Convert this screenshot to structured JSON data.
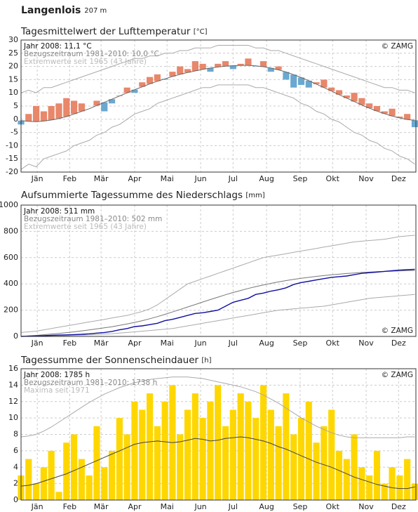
{
  "header": {
    "station": "Langenlois",
    "elevation": "207 m"
  },
  "chart_data": [
    {
      "type": "anomaly",
      "title": "Tagesmittelwert der Lufttemperatur",
      "unit": "[°C]",
      "copyright": "© ZAMG",
      "grid": true,
      "x": [
        1,
        8,
        15,
        22,
        29,
        36,
        43,
        50,
        57,
        64,
        71,
        78,
        85,
        92,
        99,
        106,
        113,
        120,
        127,
        134,
        141,
        148,
        155,
        162,
        169,
        176,
        183,
        190,
        197,
        204,
        211,
        218,
        225,
        232,
        239,
        246,
        253,
        260,
        267,
        274,
        281,
        288,
        295,
        302,
        309,
        316,
        323,
        330,
        337,
        344,
        351,
        358,
        365
      ],
      "xlim": [
        1,
        366
      ],
      "xticks": [
        {
          "value": 16,
          "label": "Jän"
        },
        {
          "value": 46,
          "label": "Feb"
        },
        {
          "value": 75,
          "label": "Mär"
        },
        {
          "value": 106,
          "label": "Apr"
        },
        {
          "value": 136,
          "label": "Mai"
        },
        {
          "value": 167,
          "label": "Jun"
        },
        {
          "value": 197,
          "label": "Jul"
        },
        {
          "value": 228,
          "label": "Aug"
        },
        {
          "value": 259,
          "label": "Sep"
        },
        {
          "value": 289,
          "label": "Okt"
        },
        {
          "value": 320,
          "label": "Nov"
        },
        {
          "value": 350,
          "label": "Dez"
        }
      ],
      "ylim": [
        -20,
        30
      ],
      "yticks": [
        -20,
        -15,
        -10,
        -5,
        0,
        5,
        10,
        15,
        20,
        25,
        30
      ],
      "series": [
        {
          "name": "Jahr 2008: 11,1 °C",
          "color": "#e8876a",
          "color_below": "#6aa8d0",
          "values": [
            -2,
            2,
            5,
            3,
            5,
            6,
            8,
            7,
            6,
            4,
            7,
            3,
            6,
            9,
            12,
            10,
            14,
            16,
            17,
            15,
            18,
            20,
            19,
            22,
            21,
            18,
            21,
            22,
            19,
            21,
            23,
            20,
            22,
            18,
            20,
            15,
            12,
            13,
            12,
            14,
            15,
            12,
            11,
            9,
            10,
            8,
            6,
            5,
            3,
            4,
            1,
            2,
            -3
          ]
        },
        {
          "name": "Bezugszeitraum 1981–2010: 10,0 °C",
          "color": "#666666",
          "values": [
            -0.5,
            -0.8,
            -0.9,
            -0.7,
            -0.3,
            0.3,
            1.0,
            2.0,
            3.0,
            4.0,
            5.2,
            6.4,
            7.6,
            8.8,
            10.0,
            11.2,
            12.3,
            13.4,
            14.4,
            15.3,
            16.2,
            17.0,
            17.7,
            18.3,
            18.9,
            19.4,
            19.8,
            20.1,
            20.3,
            20.4,
            20.4,
            20.2,
            19.9,
            19.4,
            18.7,
            17.9,
            16.9,
            15.8,
            14.6,
            13.3,
            12.0,
            10.7,
            9.3,
            8.0,
            6.7,
            5.4,
            4.2,
            3.1,
            2.1,
            1.2,
            0.5,
            -0.1,
            -0.4
          ]
        },
        {
          "name": "Extremwerte seit 1965 (43 Jahre)",
          "color": "#aaaaaa",
          "values": [
            10,
            11,
            10,
            12,
            12,
            13,
            14,
            15,
            16,
            17,
            18,
            19,
            20,
            21,
            22,
            23,
            23,
            24,
            24,
            25,
            25,
            26,
            26,
            27,
            27,
            27,
            28,
            28,
            28,
            28,
            28,
            27,
            27,
            26,
            26,
            25,
            24,
            23,
            22,
            21,
            20,
            19,
            18,
            17,
            16,
            15,
            14,
            13,
            12,
            12,
            11,
            11,
            10
          ]
        },
        {
          "color": "#aaaaaa",
          "values": [
            -19,
            -17,
            -18,
            -15,
            -14,
            -13,
            -12,
            -10,
            -9,
            -8,
            -6,
            -5,
            -3,
            -2,
            0,
            2,
            3,
            4,
            6,
            7,
            8,
            9,
            10,
            11,
            12,
            12,
            13,
            13,
            13,
            13,
            13,
            12,
            12,
            11,
            10,
            9,
            8,
            6,
            5,
            3,
            2,
            0,
            -1,
            -3,
            -5,
            -6,
            -8,
            -9,
            -11,
            -12,
            -14,
            -15,
            -17
          ]
        }
      ]
    },
    {
      "type": "line",
      "title": "Aufsummierte Tagessumme des Niederschlags",
      "unit": "[mm]",
      "copyright": "© ZAMG",
      "grid": true,
      "x": [
        1,
        8,
        15,
        22,
        29,
        36,
        43,
        50,
        57,
        64,
        71,
        78,
        85,
        92,
        99,
        106,
        113,
        120,
        127,
        134,
        141,
        148,
        155,
        162,
        169,
        176,
        183,
        190,
        197,
        204,
        211,
        218,
        225,
        232,
        239,
        246,
        253,
        260,
        267,
        274,
        281,
        288,
        295,
        302,
        309,
        316,
        323,
        330,
        337,
        344,
        351,
        358,
        365
      ],
      "xlim": [
        1,
        366
      ],
      "xticks": [
        {
          "value": 16,
          "label": "Jän"
        },
        {
          "value": 46,
          "label": "Feb"
        },
        {
          "value": 75,
          "label": "Mär"
        },
        {
          "value": 106,
          "label": "Apr"
        },
        {
          "value": 136,
          "label": "Mai"
        },
        {
          "value": 167,
          "label": "Jun"
        },
        {
          "value": 197,
          "label": "Jul"
        },
        {
          "value": 228,
          "label": "Aug"
        },
        {
          "value": 259,
          "label": "Sep"
        },
        {
          "value": 289,
          "label": "Okt"
        },
        {
          "value": 320,
          "label": "Nov"
        },
        {
          "value": 350,
          "label": "Dez"
        }
      ],
      "ylim": [
        0,
        1000
      ],
      "yticks": [
        0,
        200,
        400,
        600,
        800,
        1000
      ],
      "series": [
        {
          "name": "Jahr 2008: 511 mm",
          "color": "#1010a0",
          "values": [
            0,
            2,
            4,
            6,
            8,
            10,
            12,
            14,
            16,
            20,
            25,
            30,
            38,
            50,
            60,
            75,
            80,
            90,
            100,
            120,
            130,
            145,
            160,
            175,
            180,
            190,
            200,
            230,
            260,
            275,
            290,
            320,
            330,
            345,
            355,
            370,
            395,
            410,
            420,
            430,
            440,
            450,
            455,
            460,
            470,
            480,
            485,
            490,
            495,
            500,
            505,
            508,
            511
          ]
        },
        {
          "name": "Bezugszeitraum 1981–2010: 502 mm",
          "color": "#777777",
          "values": [
            0,
            4,
            8,
            13,
            18,
            23,
            29,
            35,
            42,
            49,
            57,
            65,
            74,
            84,
            95,
            107,
            120,
            135,
            151,
            168,
            186,
            205,
            224,
            243,
            262,
            281,
            299,
            317,
            334,
            350,
            365,
            379,
            392,
            404,
            415,
            425,
            434,
            442,
            450,
            457,
            463,
            469,
            474,
            479,
            483,
            487,
            490,
            493,
            495,
            497,
            499,
            501,
            502
          ]
        },
        {
          "name": "Extremwerte seit 1965 (43 Jahre)",
          "color": "#aaaaaa",
          "values": [
            30,
            35,
            40,
            50,
            60,
            70,
            80,
            90,
            100,
            110,
            120,
            130,
            140,
            150,
            160,
            175,
            190,
            210,
            240,
            280,
            320,
            360,
            400,
            420,
            440,
            460,
            480,
            500,
            520,
            540,
            560,
            580,
            600,
            610,
            620,
            630,
            640,
            650,
            660,
            670,
            680,
            690,
            700,
            710,
            720,
            725,
            730,
            735,
            740,
            750,
            760,
            765,
            770
          ]
        },
        {
          "color": "#aaaaaa",
          "values": [
            0,
            1,
            2,
            3,
            4,
            5,
            6,
            8,
            10,
            12,
            15,
            18,
            20,
            25,
            30,
            35,
            40,
            45,
            50,
            55,
            60,
            70,
            80,
            90,
            100,
            110,
            120,
            130,
            140,
            150,
            160,
            170,
            180,
            190,
            200,
            205,
            210,
            215,
            220,
            225,
            230,
            240,
            250,
            260,
            270,
            280,
            290,
            295,
            300,
            305,
            310,
            315,
            320
          ]
        }
      ]
    },
    {
      "type": "bar",
      "title": "Tagessumme der Sonnenscheindauer",
      "unit": "[h]",
      "copyright": "© ZAMG",
      "grid": true,
      "x": [
        1,
        8,
        15,
        22,
        29,
        36,
        43,
        50,
        57,
        64,
        71,
        78,
        85,
        92,
        99,
        106,
        113,
        120,
        127,
        134,
        141,
        148,
        155,
        162,
        169,
        176,
        183,
        190,
        197,
        204,
        211,
        218,
        225,
        232,
        239,
        246,
        253,
        260,
        267,
        274,
        281,
        288,
        295,
        302,
        309,
        316,
        323,
        330,
        337,
        344,
        351,
        358,
        365
      ],
      "xlim": [
        1,
        366
      ],
      "xticks": [
        {
          "value": 16,
          "label": "Jän"
        },
        {
          "value": 46,
          "label": "Feb"
        },
        {
          "value": 75,
          "label": "Mär"
        },
        {
          "value": 106,
          "label": "Apr"
        },
        {
          "value": 136,
          "label": "Mai"
        },
        {
          "value": 167,
          "label": "Jun"
        },
        {
          "value": 197,
          "label": "Jul"
        },
        {
          "value": 228,
          "label": "Aug"
        },
        {
          "value": 259,
          "label": "Sep"
        },
        {
          "value": 289,
          "label": "Okt"
        },
        {
          "value": 320,
          "label": "Nov"
        },
        {
          "value": 350,
          "label": "Dez"
        }
      ],
      "ylim": [
        0,
        16
      ],
      "yticks": [
        0,
        2,
        4,
        6,
        8,
        10,
        12,
        14,
        16
      ],
      "series": [
        {
          "name": "Jahr 2008: 1785 h",
          "color": "#ffd700",
          "values": [
            3,
            5,
            2,
            4,
            6,
            1,
            7,
            8,
            5,
            3,
            9,
            4,
            6,
            10,
            8,
            12,
            11,
            13,
            9,
            12,
            14,
            8,
            11,
            13,
            10,
            12,
            14,
            9,
            11,
            13,
            12,
            10,
            14,
            11,
            9,
            13,
            8,
            10,
            12,
            7,
            9,
            11,
            6,
            5,
            8,
            4,
            3,
            6,
            2,
            4,
            3,
            5,
            2
          ]
        },
        {
          "name": "Bezugszeitraum 1981–2010: 1738 h",
          "color": "#444444",
          "values": [
            1.7,
            1.8,
            2.0,
            2.3,
            2.6,
            2.9,
            3.2,
            3.6,
            4.0,
            4.4,
            4.8,
            5.2,
            5.6,
            6.0,
            6.4,
            6.8,
            7.0,
            7.1,
            7.2,
            7.1,
            7.0,
            7.1,
            7.3,
            7.5,
            7.4,
            7.2,
            7.3,
            7.5,
            7.6,
            7.7,
            7.6,
            7.4,
            7.2,
            6.9,
            6.5,
            6.2,
            5.8,
            5.4,
            5.0,
            4.6,
            4.3,
            4.0,
            3.6,
            3.2,
            2.8,
            2.5,
            2.2,
            1.9,
            1.7,
            1.5,
            1.4,
            1.4,
            1.6
          ]
        },
        {
          "name": "Maxima seit 1971",
          "color": "#aaaaaa",
          "values": [
            7.7,
            7.8,
            8.0,
            8.4,
            8.9,
            9.5,
            10.1,
            10.7,
            11.3,
            11.9,
            12.4,
            12.9,
            13.3,
            13.7,
            14.0,
            14.3,
            14.5,
            14.7,
            14.8,
            14.9,
            15.0,
            15.0,
            15.0,
            14.9,
            14.8,
            14.6,
            14.4,
            14.2,
            14.0,
            13.8,
            13.5,
            13.2,
            12.8,
            12.3,
            11.8,
            11.2,
            10.6,
            10.0,
            9.5,
            9.0,
            8.6,
            8.2,
            7.9,
            7.7,
            7.6,
            7.6,
            7.6,
            7.6,
            7.6,
            7.6,
            7.6,
            7.7,
            7.7
          ]
        }
      ]
    }
  ]
}
